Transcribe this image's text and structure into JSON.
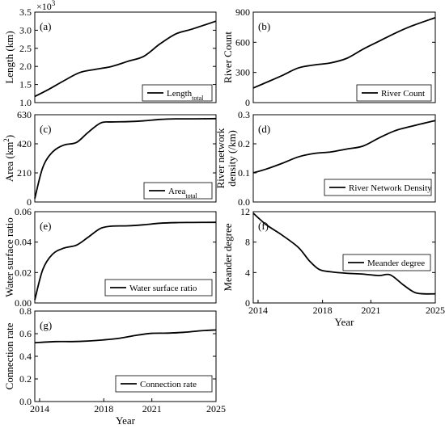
{
  "chart_data": [
    {
      "id": "a",
      "panel_label": "(a)",
      "type": "line",
      "ylabel": "Length (km)",
      "xlabel": "",
      "multiplier": "×10",
      "multiplier_exp": "3",
      "ylim": [
        1.0,
        3.5
      ],
      "yticks": [
        "1.0",
        "1.5",
        "2.0",
        "2.5",
        "3.0",
        "3.5"
      ],
      "ytick_values": [
        1.0,
        1.5,
        2.0,
        2.5,
        3.0,
        3.5
      ],
      "xlim": [
        2013.7,
        2025
      ],
      "xticks": [],
      "xtick_values": [],
      "series": [
        {
          "name": "Length",
          "name_sub": "total",
          "x": [
            2013.7,
            2014.5,
            2015.5,
            2016.5,
            2017.5,
            2018.5,
            2019.5,
            2020.5,
            2021.5,
            2022.5,
            2023.5,
            2025
          ],
          "y": [
            1.17,
            1.35,
            1.6,
            1.83,
            1.92,
            2.0,
            2.14,
            2.28,
            2.62,
            2.9,
            3.03,
            3.25
          ]
        }
      ],
      "legend": "bottom-right"
    },
    {
      "id": "b",
      "panel_label": "(b)",
      "type": "line",
      "ylabel": "River Count",
      "xlabel": "",
      "ylim": [
        0,
        900
      ],
      "yticks": [
        "0",
        "300",
        "600",
        "900"
      ],
      "ytick_values": [
        0,
        300,
        600,
        900
      ],
      "xlim": [
        2013.7,
        2025
      ],
      "xticks": [],
      "xtick_values": [],
      "series": [
        {
          "name": "River Count",
          "x": [
            2013.7,
            2014.5,
            2015.5,
            2016.5,
            2017.5,
            2018.5,
            2019.5,
            2020.5,
            2021.5,
            2022.5,
            2023.5,
            2025
          ],
          "y": [
            145,
            200,
            270,
            345,
            375,
            395,
            440,
            530,
            610,
            690,
            760,
            845
          ]
        }
      ],
      "legend": "bottom-right"
    },
    {
      "id": "c",
      "panel_label": "(c)",
      "type": "line",
      "ylabel": "Area (km",
      "ylabel_sup": "2",
      "ylabel_after": ")",
      "xlabel": "",
      "ylim": [
        0,
        630
      ],
      "yticks": [
        "0",
        "210",
        "420",
        "630"
      ],
      "ytick_values": [
        0,
        210,
        420,
        630
      ],
      "xlim": [
        2013.7,
        2025
      ],
      "xticks": [],
      "xtick_values": [],
      "series": [
        {
          "name": "Area",
          "name_sub": "total",
          "x": [
            2013.7,
            2014.2,
            2014.8,
            2015.5,
            2016.3,
            2017.0,
            2017.8,
            2018.5,
            2019.5,
            2020.5,
            2021.5,
            2022.5,
            2023.5,
            2025
          ],
          "y": [
            25,
            250,
            360,
            410,
            430,
            500,
            570,
            578,
            580,
            586,
            596,
            600,
            600,
            602
          ]
        }
      ],
      "legend": "bottom-right"
    },
    {
      "id": "d",
      "panel_label": "(d)",
      "type": "line",
      "ylabel": "River network",
      "ylabel2": "density (/km)",
      "xlabel": "",
      "ylim": [
        0,
        0.3
      ],
      "yticks": [
        "0.0",
        "0.1",
        "0.2",
        "0.3"
      ],
      "ytick_values": [
        0,
        0.1,
        0.2,
        0.3
      ],
      "xlim": [
        2013.7,
        2025
      ],
      "xticks": [],
      "xtick_values": [],
      "series": [
        {
          "name": "River Network Density",
          "x": [
            2013.7,
            2014.5,
            2015.5,
            2016.5,
            2017.5,
            2018.5,
            2019.5,
            2020.5,
            2021.5,
            2022.5,
            2023.5,
            2025
          ],
          "y": [
            0.1,
            0.113,
            0.133,
            0.155,
            0.167,
            0.172,
            0.182,
            0.192,
            0.22,
            0.245,
            0.26,
            0.28
          ]
        }
      ],
      "legend": "bottom-right"
    },
    {
      "id": "e",
      "panel_label": "(e)",
      "type": "line",
      "ylabel": "Water surface ratio",
      "xlabel": "",
      "ylim": [
        0,
        0.06
      ],
      "yticks": [
        "0.00",
        "0.02",
        "0.04",
        "0.06"
      ],
      "ytick_values": [
        0,
        0.02,
        0.04,
        0.06
      ],
      "xlim": [
        2013.7,
        2025
      ],
      "xticks": [],
      "xtick_values": [],
      "series": [
        {
          "name": "Water surface ratio",
          "x": [
            2013.7,
            2014.2,
            2014.8,
            2015.5,
            2016.3,
            2017.0,
            2017.8,
            2018.5,
            2019.5,
            2020.5,
            2021.5,
            2022.5,
            2023.5,
            2025
          ],
          "y": [
            0.002,
            0.022,
            0.032,
            0.036,
            0.038,
            0.043,
            0.049,
            0.0505,
            0.0507,
            0.0514,
            0.0524,
            0.0528,
            0.0529,
            0.053
          ]
        }
      ],
      "legend": "bottom-right"
    },
    {
      "id": "f",
      "panel_label": "(f)",
      "type": "line",
      "ylabel": "Meander degree",
      "xlabel": "Year",
      "ylim": [
        0,
        12
      ],
      "yticks": [
        "0",
        "4",
        "8",
        "12"
      ],
      "ytick_values": [
        0,
        4,
        8,
        12
      ],
      "xlim": [
        2013.7,
        2025
      ],
      "xticks": [
        "2014",
        "2018",
        "2021",
        "2025"
      ],
      "xtick_values": [
        2014,
        2018,
        2021,
        2025
      ],
      "series": [
        {
          "name": "Meander degree",
          "x": [
            2013.7,
            2014.5,
            2015.5,
            2016.5,
            2017.2,
            2017.8,
            2018.5,
            2019.5,
            2020.5,
            2021.5,
            2022.2,
            2023.0,
            2023.7,
            2024.3,
            2025
          ],
          "y": [
            11.8,
            10.3,
            8.9,
            7.3,
            5.5,
            4.4,
            4.1,
            3.9,
            3.8,
            3.6,
            3.7,
            2.4,
            1.4,
            1.2,
            1.2
          ]
        }
      ],
      "legend": "center-right"
    },
    {
      "id": "g",
      "panel_label": "(g)",
      "type": "line",
      "ylabel": "Connection rate",
      "xlabel": "Year",
      "ylim": [
        0,
        0.8
      ],
      "yticks": [
        "0.0",
        "0.2",
        "0.4",
        "0.6",
        "0.8"
      ],
      "ytick_values": [
        0,
        0.2,
        0.4,
        0.6,
        0.8
      ],
      "xlim": [
        2013.7,
        2025
      ],
      "xticks": [
        "2014",
        "2018",
        "2021",
        "2025"
      ],
      "xtick_values": [
        2014,
        2018,
        2021,
        2025
      ],
      "series": [
        {
          "name": "Connection rate",
          "x": [
            2013.7,
            2015,
            2016,
            2017,
            2018,
            2019,
            2020,
            2021,
            2022,
            2023,
            2024,
            2025
          ],
          "y": [
            0.52,
            0.53,
            0.53,
            0.535,
            0.545,
            0.56,
            0.585,
            0.603,
            0.605,
            0.612,
            0.625,
            0.633
          ]
        }
      ],
      "legend": "bottom-right"
    }
  ]
}
